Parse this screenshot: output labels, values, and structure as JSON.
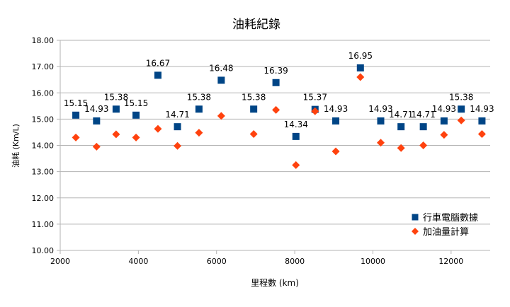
{
  "chart_data": {
    "type": "scatter",
    "title": "油耗紀錄",
    "xlabel": "里程數 (km)",
    "ylabel": "油耗 (Km/L)",
    "xlim": [
      2000,
      13000
    ],
    "ylim": [
      10,
      18
    ],
    "x_ticks": [
      2000,
      4000,
      6000,
      8000,
      10000,
      12000
    ],
    "x_tick_labels": [
      "2000",
      "4000",
      "6000",
      "8000",
      "10000",
      "12000"
    ],
    "y_ticks": [
      10,
      11,
      12,
      13,
      14,
      15,
      16,
      17,
      18
    ],
    "y_tick_labels": [
      "10.00",
      "11.00",
      "12.00",
      "13.00",
      "14.00",
      "15.00",
      "16.00",
      "17.00",
      "18.00"
    ],
    "grid": "horizontal",
    "legend_position": "bottom-right",
    "series": [
      {
        "name": "行車電腦數據",
        "marker": "square",
        "color": "#004586",
        "labels_shown": true,
        "points": [
          {
            "x": 2400,
            "y": 15.15,
            "label": "15.15"
          },
          {
            "x": 2930,
            "y": 14.93,
            "label": "14.93"
          },
          {
            "x": 3430,
            "y": 15.38,
            "label": "15.38"
          },
          {
            "x": 3940,
            "y": 15.15,
            "label": "15.15"
          },
          {
            "x": 4500,
            "y": 16.67,
            "label": "16.67"
          },
          {
            "x": 5000,
            "y": 14.71,
            "label": "14.71"
          },
          {
            "x": 5550,
            "y": 15.38,
            "label": "15.38"
          },
          {
            "x": 6120,
            "y": 16.48,
            "label": "16.48"
          },
          {
            "x": 6950,
            "y": 15.38,
            "label": "15.38"
          },
          {
            "x": 7520,
            "y": 16.39,
            "label": "16.39"
          },
          {
            "x": 8030,
            "y": 14.34,
            "label": "14.34"
          },
          {
            "x": 8520,
            "y": 15.37,
            "label": "15.37"
          },
          {
            "x": 9050,
            "y": 14.93,
            "label": "14.93"
          },
          {
            "x": 9680,
            "y": 16.95,
            "label": "16.95"
          },
          {
            "x": 10200,
            "y": 14.93,
            "label": "14.93"
          },
          {
            "x": 10720,
            "y": 14.71,
            "label": "14.71"
          },
          {
            "x": 11290,
            "y": 14.71,
            "label": "14.71"
          },
          {
            "x": 11820,
            "y": 14.93,
            "label": "14.93"
          },
          {
            "x": 12260,
            "y": 15.38,
            "label": "15.38"
          },
          {
            "x": 12790,
            "y": 14.93,
            "label": "14.93"
          }
        ]
      },
      {
        "name": "加油量計算",
        "marker": "diamond",
        "color": "#ff420e",
        "labels_shown": false,
        "points": [
          {
            "x": 2400,
            "y": 14.3
          },
          {
            "x": 2930,
            "y": 13.95
          },
          {
            "x": 3430,
            "y": 14.42
          },
          {
            "x": 3940,
            "y": 14.3
          },
          {
            "x": 4500,
            "y": 14.63
          },
          {
            "x": 5000,
            "y": 13.98
          },
          {
            "x": 5550,
            "y": 14.48
          },
          {
            "x": 6120,
            "y": 15.12
          },
          {
            "x": 6950,
            "y": 14.43
          },
          {
            "x": 7520,
            "y": 15.35
          },
          {
            "x": 8030,
            "y": 13.25
          },
          {
            "x": 8520,
            "y": 15.3
          },
          {
            "x": 9050,
            "y": 13.77
          },
          {
            "x": 9680,
            "y": 16.6
          },
          {
            "x": 10200,
            "y": 14.1
          },
          {
            "x": 10720,
            "y": 13.9
          },
          {
            "x": 11290,
            "y": 14.0
          },
          {
            "x": 11820,
            "y": 14.4
          },
          {
            "x": 12260,
            "y": 14.95
          },
          {
            "x": 12790,
            "y": 14.43
          }
        ]
      }
    ]
  }
}
